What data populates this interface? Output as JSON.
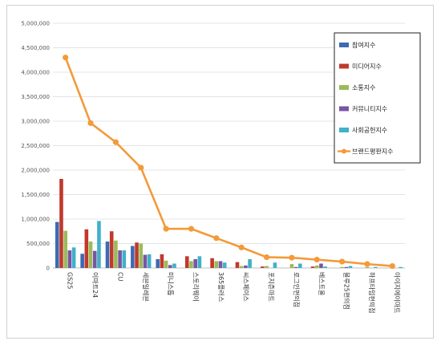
{
  "chart_data": {
    "type": "bar",
    "categories": [
      "GS25",
      "이마트24",
      "CU",
      "세븐일레븐",
      "미니스톱",
      "스토리웨이",
      "365플러스",
      "씨스페이스",
      "포지즌마트",
      "로그인편의점",
      "베스트올",
      "블루25편의점",
      "하프타임편의점",
      "아이지에이마트"
    ],
    "series": [
      {
        "name": "참여지수",
        "color": "#3d6ab3",
        "values": [
          940000,
          290000,
          540000,
          450000,
          180000,
          0,
          0,
          0,
          0,
          0,
          0,
          0,
          0,
          0
        ]
      },
      {
        "name": "미디어지수",
        "color": "#c0392b",
        "values": [
          1820000,
          790000,
          750000,
          520000,
          280000,
          240000,
          200000,
          120000,
          30000,
          0,
          30000,
          0,
          0,
          0
        ]
      },
      {
        "name": "소통지수",
        "color": "#9bbb59",
        "values": [
          760000,
          540000,
          560000,
          500000,
          150000,
          140000,
          140000,
          40000,
          40000,
          80000,
          50000,
          20000,
          20000,
          0
        ]
      },
      {
        "name": "커뮤니티지수",
        "color": "#7a55a3",
        "values": [
          360000,
          350000,
          360000,
          270000,
          60000,
          180000,
          140000,
          50000,
          0,
          20000,
          90000,
          20000,
          0,
          0
        ]
      },
      {
        "name": "사회공헌지수",
        "color": "#3fb1c9",
        "values": [
          420000,
          960000,
          360000,
          280000,
          90000,
          240000,
          110000,
          180000,
          110000,
          90000,
          30000,
          40000,
          20000,
          20000
        ]
      }
    ],
    "line": {
      "name": "브랜드평판지수",
      "color": "#f39a3a",
      "values": [
        4300000,
        2960000,
        2570000,
        2050000,
        800000,
        800000,
        610000,
        420000,
        220000,
        210000,
        170000,
        130000,
        80000,
        40000
      ]
    },
    "yticks": [
      "0",
      "500,000",
      "1,000,000",
      "1,500,000",
      "2,000,000",
      "2,500,000",
      "3,000,000",
      "3,500,000",
      "4,000,000",
      "4,500,000",
      "5,000,000"
    ],
    "ylim": [
      0,
      5000000
    ],
    "grid": true,
    "legend_position": "right"
  }
}
